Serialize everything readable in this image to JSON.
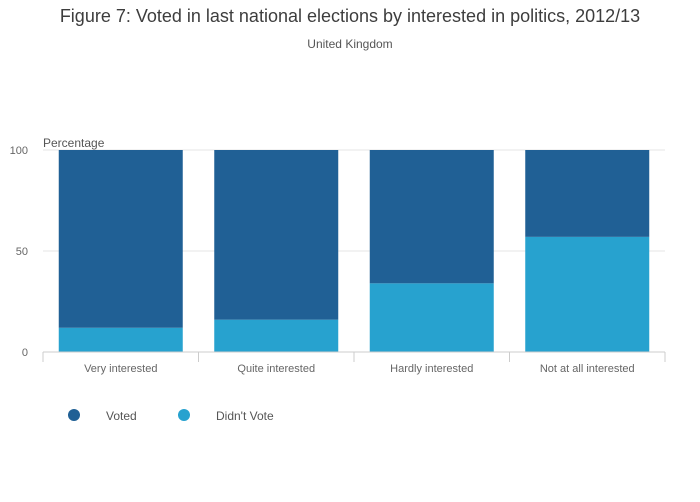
{
  "chart_data": {
    "type": "bar",
    "stacked": true,
    "title": "Figure 7: Voted in last national elections by interested in politics, 2012/13",
    "subtitle": "United Kingdom",
    "xlabel": "",
    "ylabel": "Percentage",
    "ylim": [
      0,
      100
    ],
    "yticks": [
      0,
      50,
      100
    ],
    "grid": true,
    "legend_position": "bottom-left",
    "categories": [
      "Very interested",
      "Quite interested",
      "Hardly interested",
      "Not at all interested"
    ],
    "series": [
      {
        "name": "Didn't Vote",
        "values": [
          12,
          16,
          34,
          57
        ],
        "color": "#27a2cf"
      },
      {
        "name": "Voted",
        "values": [
          88,
          84,
          66,
          43
        ],
        "color": "#206095"
      }
    ],
    "legend": [
      {
        "name": "Voted",
        "color": "#206095"
      },
      {
        "name": "Didn't Vote",
        "color": "#27a2cf"
      }
    ]
  }
}
